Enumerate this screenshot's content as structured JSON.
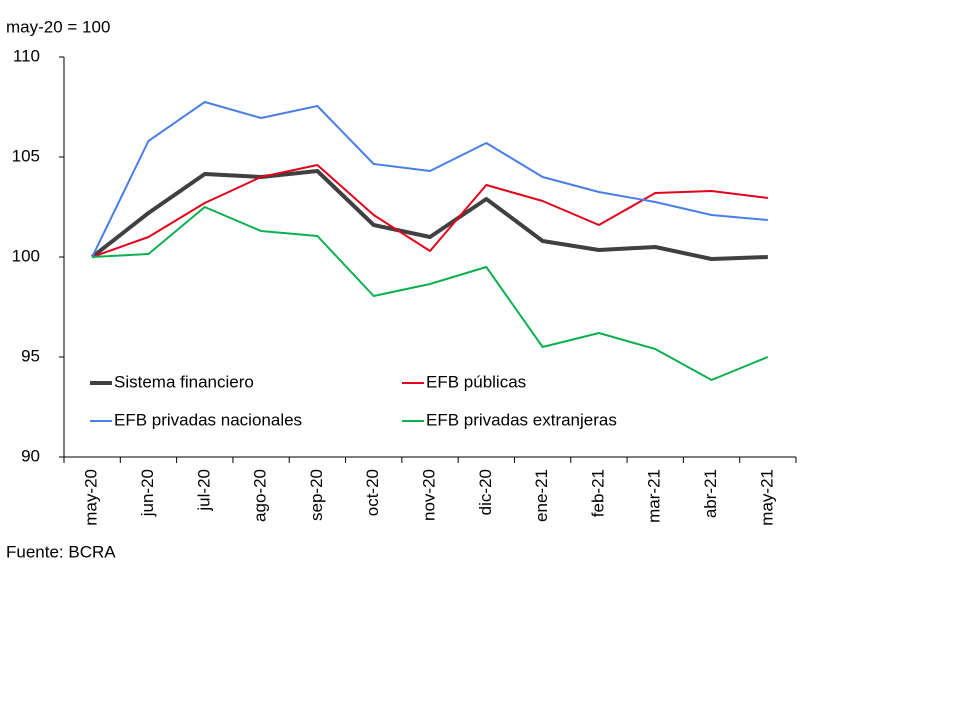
{
  "chart_data": {
    "type": "line",
    "y_label": "may-20 = 100",
    "source": "Fuente: BCRA",
    "categories": [
      "may-20",
      "jun-20",
      "jul-20",
      "ago-20",
      "sep-20",
      "oct-20",
      "nov-20",
      "dic-20",
      "ene-21",
      "feb-21",
      "mar-21",
      "abr-21",
      "may-21"
    ],
    "series": [
      {
        "name": "Sistema financiero",
        "color": "#404040",
        "values": [
          100,
          102.2,
          104.15,
          104.0,
          104.3,
          101.6,
          101.0,
          102.9,
          100.8,
          100.35,
          100.5,
          99.9,
          100.0
        ]
      },
      {
        "name": "EFB públicas",
        "color": "#e3001b",
        "values": [
          100,
          101.0,
          102.7,
          104.0,
          104.6,
          102.1,
          100.3,
          103.6,
          102.8,
          101.6,
          103.2,
          103.3,
          102.95
        ]
      },
      {
        "name": "EFB privadas nacionales",
        "color": "#4a7ee6",
        "values": [
          100,
          105.8,
          107.75,
          106.95,
          107.55,
          104.65,
          104.3,
          105.7,
          104.0,
          103.25,
          102.75,
          102.1,
          101.85
        ]
      },
      {
        "name": "EFB privadas extranjeras",
        "color": "#0ab04e",
        "values": [
          100,
          100.15,
          102.5,
          101.3,
          101.05,
          98.05,
          98.65,
          99.5,
          95.5,
          96.2,
          95.4,
          93.85,
          95.0
        ]
      }
    ],
    "ylim": [
      90,
      110
    ],
    "yticks": [
      90,
      95,
      100,
      105,
      110
    ],
    "grid": false
  }
}
